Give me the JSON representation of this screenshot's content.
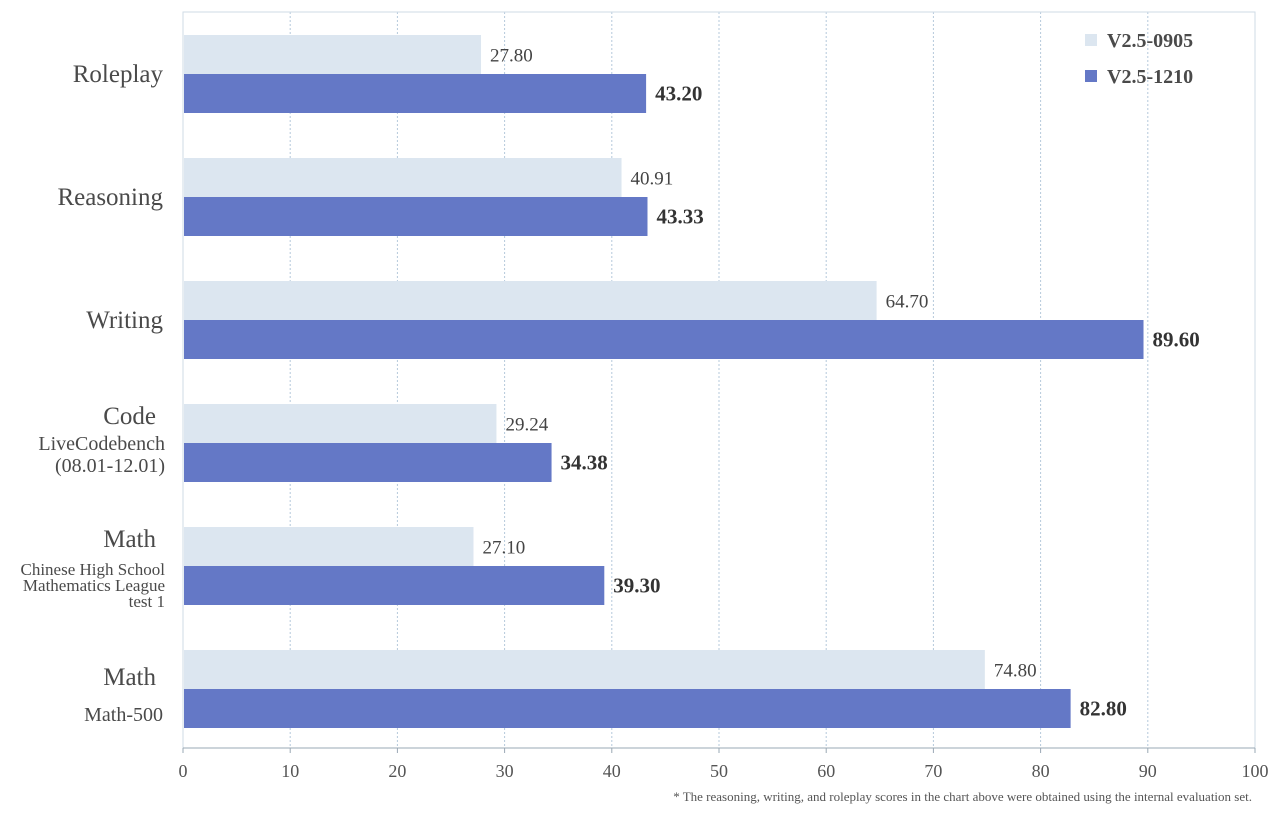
{
  "chart_data": {
    "type": "bar",
    "orientation": "horizontal",
    "categories": [
      {
        "label": "Roleplay",
        "sub": []
      },
      {
        "label": "Reasoning",
        "sub": []
      },
      {
        "label": "Writing",
        "sub": []
      },
      {
        "label": "Code",
        "sub": [
          "LiveCodebench",
          "(08.01-12.01)"
        ]
      },
      {
        "label": "Math",
        "sub": [
          "Chinese High School",
          "Mathematics League",
          "test 1"
        ]
      },
      {
        "label": "Math",
        "sub": [
          "Math-500"
        ]
      }
    ],
    "series": [
      {
        "name": "V2.5-0905",
        "color": "#dce6f0",
        "values": [
          27.8,
          40.91,
          64.7,
          29.24,
          27.1,
          74.8
        ],
        "labels": [
          "27.80",
          "40.91",
          "64.70",
          "29.24",
          "27.10",
          "74.80"
        ]
      },
      {
        "name": "V2.5-1210",
        "color": "#6478c6",
        "values": [
          43.2,
          43.33,
          89.6,
          34.38,
          39.3,
          82.8
        ],
        "labels": [
          "43.20",
          "43.33",
          "89.60",
          "34.38",
          "39.30",
          "82.80"
        ]
      }
    ],
    "xlim": [
      0,
      100
    ],
    "xticks": [
      0,
      10,
      20,
      30,
      40,
      50,
      60,
      70,
      80,
      90,
      100
    ],
    "grid": true,
    "legend_position": "top-right",
    "footnote": "* The reasoning, writing, and roleplay scores in the chart above were obtained using the internal evaluation set."
  }
}
